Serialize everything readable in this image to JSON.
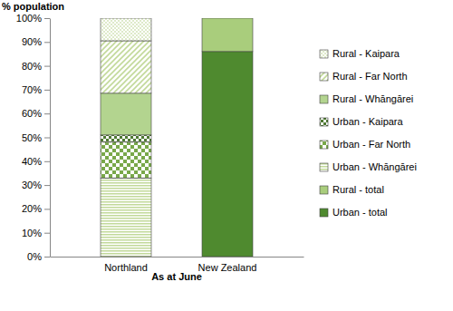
{
  "chart_data": {
    "type": "bar",
    "stacked": true,
    "y_label": "% population",
    "x_label": "As at June",
    "categories": [
      "Northland",
      "New Zealand"
    ],
    "ylim": [
      0,
      100
    ],
    "yticks": [
      {
        "value": 0,
        "label": "0%"
      },
      {
        "value": 10,
        "label": "10%"
      },
      {
        "value": 20,
        "label": "20%"
      },
      {
        "value": 30,
        "label": "30%"
      },
      {
        "value": 40,
        "label": "40%"
      },
      {
        "value": 50,
        "label": "50%"
      },
      {
        "value": 60,
        "label": "60%"
      },
      {
        "value": 70,
        "label": "70%"
      },
      {
        "value": 80,
        "label": "80%"
      },
      {
        "value": 90,
        "label": "90%"
      },
      {
        "value": 100,
        "label": "100%"
      }
    ],
    "grid": false,
    "legend": "right",
    "series": [
      {
        "name": "Urban - total",
        "color": "#4f8a2f",
        "values": [
          null,
          86
        ]
      },
      {
        "name": "Rural - total",
        "color": "#a9cd7c",
        "values": [
          null,
          14
        ]
      },
      {
        "name": "Urban - Whāngārei",
        "color": "#c2d99a",
        "values": [
          33,
          null
        ]
      },
      {
        "name": "Urban - Far North",
        "color": "#79a84a",
        "values": [
          15,
          null
        ]
      },
      {
        "name": "Urban - Kaipara",
        "color": "#4f7a33",
        "values": [
          3,
          null
        ]
      },
      {
        "name": "Rural - Whāngārei",
        "color": "#b3d48f",
        "values": [
          17.5,
          null
        ]
      },
      {
        "name": "Rural - Far North",
        "color": "#c2d99a",
        "values": [
          22,
          null
        ]
      },
      {
        "name": "Rural - Kaipara",
        "color": "#cfe0b0",
        "values": [
          9.5,
          null
        ]
      }
    ]
  }
}
